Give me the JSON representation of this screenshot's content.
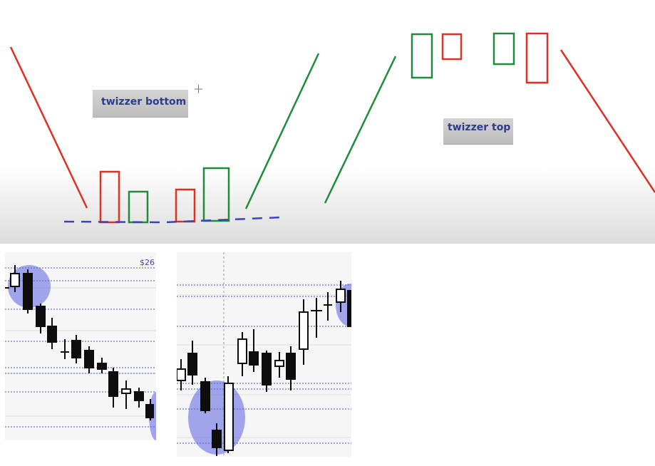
{
  "labels": {
    "bottom": "twizzer bottom",
    "top": "twizzer top"
  },
  "price_label": "$26",
  "colors": {
    "bull": "#1e8c3a",
    "bear": "#e03024",
    "support": "#3a46b8",
    "highlight": "#5a60e0",
    "candle": "#0d0d0d"
  },
  "icons": [
    "crosshair-cursor-icon"
  ]
}
